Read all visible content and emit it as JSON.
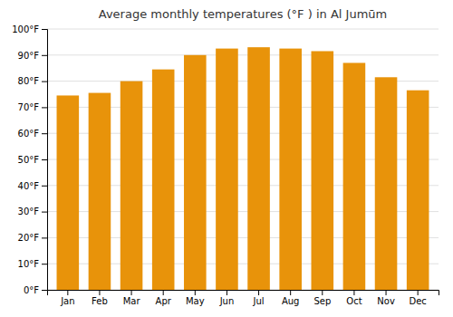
{
  "chart_data": {
    "type": "bar",
    "title": "Average monthly temperatures (°F ) in Al Jumūm",
    "categories": [
      "Jan",
      "Feb",
      "Mar",
      "Apr",
      "May",
      "Jun",
      "Jul",
      "Aug",
      "Sep",
      "Oct",
      "Nov",
      "Dec"
    ],
    "values": [
      74.5,
      75.5,
      80,
      84.5,
      90,
      92.5,
      93,
      92.5,
      91.5,
      87,
      81.5,
      76.5
    ],
    "color": "#E8930A",
    "ylim": [
      0,
      100
    ],
    "yticks": [
      {
        "value": 0,
        "label": "0°F"
      },
      {
        "value": 10,
        "label": "10°F"
      },
      {
        "value": 20,
        "label": "20°F"
      },
      {
        "value": 30,
        "label": "30°F"
      },
      {
        "value": 40,
        "label": "40°F"
      },
      {
        "value": 50,
        "label": "50°F"
      },
      {
        "value": 60,
        "label": "60°F"
      },
      {
        "value": 70,
        "label": "70°F"
      },
      {
        "value": 80,
        "label": "80°F"
      },
      {
        "value": 90,
        "label": "90°F"
      },
      {
        "value": 100,
        "label": "100°F"
      }
    ],
    "grid": true
  }
}
